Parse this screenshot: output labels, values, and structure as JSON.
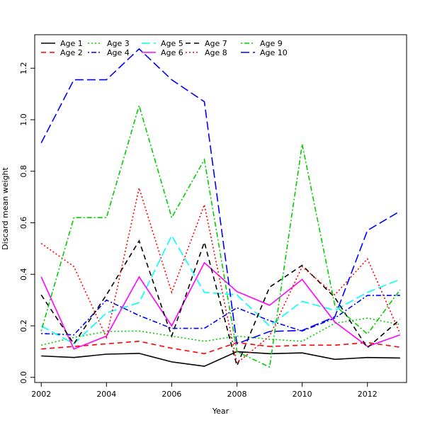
{
  "chart_data": {
    "type": "line",
    "title": "",
    "xlabel": "Year",
    "ylabel": "Discard mean weight",
    "xlim": [
      2001.8,
      2013.2
    ],
    "ylim": [
      -0.02,
      1.33
    ],
    "x_ticks": [
      2002,
      2004,
      2006,
      2008,
      2010,
      2012
    ],
    "y_ticks": [
      0.0,
      0.2,
      0.4,
      0.6,
      0.8,
      1.0,
      1.2
    ],
    "y_tick_labels": [
      "0.0",
      "0.2",
      "0.4",
      "0.6",
      "0.8",
      "1.0",
      "1.2"
    ],
    "grid": false,
    "legend_position": "top-left",
    "legend_columns": 5,
    "x": [
      2002,
      2003,
      2004,
      2005,
      2006,
      2007,
      2008,
      2009,
      2010,
      2011,
      2012,
      2013
    ],
    "series": [
      {
        "name": "Age 1",
        "color": "#000000",
        "dash": "solid",
        "values": [
          0.083,
          0.077,
          0.09,
          0.093,
          0.06,
          0.043,
          0.1,
          0.092,
          0.095,
          0.07,
          0.077,
          0.075
        ]
      },
      {
        "name": "Age 2",
        "color": "#ff0000",
        "dash": "dashed",
        "values": [
          0.11,
          0.12,
          0.13,
          0.14,
          0.113,
          0.092,
          0.135,
          0.12,
          0.125,
          0.125,
          0.135,
          0.117
        ]
      },
      {
        "name": "Age 3",
        "color": "#00cd00",
        "dash": "dotted",
        "values": [
          0.125,
          0.155,
          0.178,
          0.18,
          0.16,
          0.14,
          0.16,
          0.148,
          0.14,
          0.21,
          0.23,
          0.205
        ]
      },
      {
        "name": "Age 4",
        "color": "#0000ff",
        "dash": "dotdash",
        "values": [
          0.17,
          0.165,
          0.3,
          0.24,
          0.19,
          0.19,
          0.27,
          0.22,
          0.18,
          0.23,
          0.318,
          0.318
        ]
      },
      {
        "name": "Age 5",
        "color": "#00ffff",
        "dash": "longdash",
        "values": [
          0.2,
          0.13,
          0.25,
          0.29,
          0.55,
          0.33,
          0.32,
          0.2,
          0.295,
          0.26,
          0.33,
          0.38
        ]
      },
      {
        "name": "Age 6",
        "color": "#ff00ff",
        "dash": "solid",
        "values": [
          0.39,
          0.11,
          0.16,
          0.39,
          0.2,
          0.445,
          0.333,
          0.28,
          0.38,
          0.215,
          0.12,
          0.165
        ]
      },
      {
        "name": "Age 7",
        "color": "#000000",
        "dash": "dashed",
        "values": [
          0.32,
          0.13,
          0.32,
          0.53,
          0.16,
          0.525,
          0.045,
          0.35,
          0.435,
          0.31,
          0.115,
          0.225
        ]
      },
      {
        "name": "Age 8",
        "color": "#ff0000",
        "dash": "dotted",
        "values": [
          0.52,
          0.43,
          0.155,
          0.735,
          0.33,
          0.67,
          0.055,
          0.16,
          0.43,
          0.32,
          0.46,
          0.17
        ]
      },
      {
        "name": "Age 9",
        "color": "#00cd00",
        "dash": "dotdash",
        "values": [
          0.18,
          0.62,
          0.62,
          1.055,
          0.62,
          0.845,
          0.1,
          0.04,
          0.905,
          0.28,
          0.168,
          0.34
        ]
      },
      {
        "name": "Age 10",
        "color": "#0000ff",
        "dash": "longdash",
        "values": [
          0.91,
          1.155,
          1.155,
          1.275,
          1.155,
          1.07,
          0.13,
          0.178,
          0.182,
          0.235,
          0.57,
          0.645
        ]
      }
    ]
  }
}
